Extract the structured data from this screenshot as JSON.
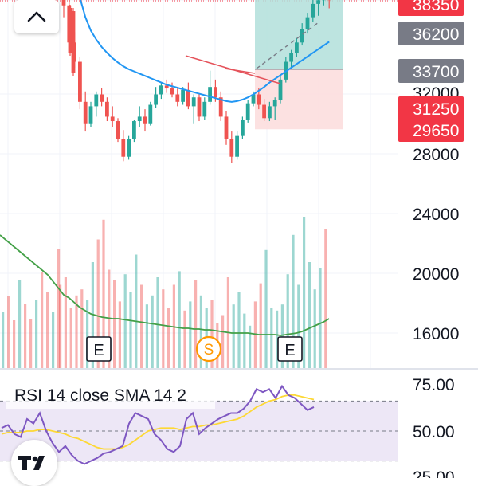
{
  "chart_data": {
    "type": "candlestick",
    "price_axis": {
      "ticks": [
        "28000",
        "24000",
        "20000",
        "16000"
      ],
      "tick_values": [
        28000,
        24000,
        20000,
        16000
      ],
      "partial_tick": "32000"
    },
    "price_badges": [
      {
        "label": "38350",
        "value": 38350,
        "color": "#f23645"
      },
      {
        "label": "36200",
        "value": 36200,
        "color": "#787b86"
      },
      {
        "label": "33700",
        "value": 33700,
        "color": "#787b86"
      },
      {
        "label": "31250",
        "value": 31250,
        "color": "#f23645"
      },
      {
        "label": "29650",
        "value": 29650,
        "color": "#f23645"
      }
    ],
    "events": [
      {
        "label": "E",
        "kind": "earnings",
        "index": 13
      },
      {
        "label": "S",
        "kind": "split",
        "index": 31
      },
      {
        "label": "E",
        "kind": "earnings",
        "index": 45
      }
    ],
    "ohlc": [
      [
        39500,
        40000,
        37200,
        38000
      ],
      [
        38000,
        38500,
        35000,
        35500
      ],
      [
        35500,
        36200,
        33800,
        34200
      ],
      [
        34200,
        34500,
        31000,
        31500
      ],
      [
        31500,
        32200,
        29500,
        30000
      ],
      [
        30000,
        31500,
        29800,
        31200
      ],
      [
        31200,
        32200,
        30500,
        32000
      ],
      [
        32000,
        32400,
        31200,
        31500
      ],
      [
        31500,
        31800,
        30200,
        30500
      ],
      [
        30500,
        31200,
        29800,
        30200
      ],
      [
        30200,
        30400,
        28800,
        29000
      ],
      [
        29000,
        29600,
        27500,
        27800
      ],
      [
        27800,
        29200,
        27600,
        29000
      ],
      [
        29000,
        30300,
        28800,
        30200
      ],
      [
        30200,
        31200,
        29800,
        30500
      ],
      [
        30500,
        31000,
        29500,
        30000
      ],
      [
        30000,
        31500,
        29900,
        31300
      ],
      [
        31300,
        32500,
        31100,
        32000
      ],
      [
        32000,
        32800,
        31700,
        32600
      ],
      [
        32600,
        33000,
        32100,
        32400
      ],
      [
        32400,
        32800,
        31800,
        32000
      ],
      [
        32000,
        32400,
        31200,
        31500
      ],
      [
        31500,
        32500,
        31300,
        32300
      ],
      [
        32300,
        32800,
        31000,
        31200
      ],
      [
        31200,
        32000,
        30000,
        31800
      ],
      [
        31800,
        32000,
        30200,
        30500
      ],
      [
        30500,
        31800,
        30300,
        31500
      ],
      [
        31500,
        33600,
        31300,
        32500
      ],
      [
        32500,
        33000,
        31500,
        31800
      ],
      [
        31800,
        32200,
        30200,
        30500
      ],
      [
        30500,
        30900,
        28600,
        29000
      ],
      [
        29000,
        29500,
        27400,
        27800
      ],
      [
        27800,
        29500,
        27600,
        29200
      ],
      [
        29200,
        30500,
        29000,
        30300
      ],
      [
        30300,
        31600,
        30100,
        31400
      ],
      [
        31400,
        32200,
        31200,
        32000
      ],
      [
        32000,
        32400,
        31000,
        31300
      ],
      [
        31300,
        31700,
        30200,
        30400
      ],
      [
        30400,
        31500,
        30200,
        31200
      ],
      [
        31200,
        31800,
        30300,
        31600
      ],
      [
        31600,
        33300,
        31400,
        33000
      ],
      [
        33000,
        34500,
        32800,
        34200
      ],
      [
        34200,
        35000,
        33700,
        34800
      ],
      [
        34800,
        35800,
        34500,
        35500
      ],
      [
        35500,
        36800,
        35300,
        36400
      ],
      [
        36400,
        37500,
        36100,
        37200
      ],
      [
        37200,
        38500,
        36900,
        38100
      ],
      [
        38100,
        38600,
        37300,
        38350
      ],
      [
        38350,
        39500,
        38000,
        38900
      ],
      [
        38900,
        39000,
        37800,
        38350
      ]
    ],
    "moving_average": {
      "color": "#2196f3",
      "values": [
        44000,
        42000,
        40000,
        38500,
        37200,
        36300,
        35700,
        35200,
        34800,
        34450,
        34150,
        33900,
        33700,
        33550,
        33400,
        33250,
        33100,
        32950,
        32800,
        32650,
        32550,
        32450,
        32350,
        32250,
        32150,
        32050,
        31950,
        31850,
        31750,
        31650,
        31550,
        31500,
        31550,
        31650,
        31800,
        32000,
        32250,
        32500,
        32800,
        33050,
        33300,
        33550,
        33800,
        34050,
        34300,
        34550,
        34800,
        35050,
        35300,
        35550
      ]
    },
    "drawings": {
      "trendline": {
        "color": "#e5535b",
        "points": [
          [
            20,
            34300
          ],
          [
            44,
            32800
          ]
        ]
      },
      "dashed_projection": {
        "color": "#787b86",
        "points": [
          [
            40,
            33700
          ],
          [
            48,
            37200
          ]
        ]
      },
      "long_position": {
        "from_index": 40,
        "to_index": 50,
        "entry": 33700,
        "target": 39600,
        "stop": 29650,
        "target_color": "#b2dfdb",
        "stop_color": "#fcdede"
      }
    },
    "volume": {
      "values": [
        55,
        60,
        40,
        48,
        52,
        45,
        70,
        85,
        98,
        65,
        58,
        44,
        62,
        50,
        75,
        55,
        42,
        48,
        60,
        52,
        40,
        55,
        64,
        38,
        44,
        58,
        48,
        40,
        45,
        30,
        35,
        60,
        42,
        50,
        36,
        28,
        44,
        56,
        78,
        40,
        38,
        42,
        62,
        88,
        55,
        100,
        70,
        52,
        66,
        92
      ],
      "up_color": "#26a69a",
      "down_color": "#ef5350",
      "ma_values": [
        92,
        88,
        82,
        76,
        72,
        68,
        66,
        64,
        63,
        62,
        62,
        61,
        60,
        59,
        58,
        57,
        56,
        55,
        54,
        53,
        52,
        51,
        50,
        50,
        49,
        49,
        48,
        48,
        47,
        46,
        45,
        44,
        44,
        44,
        44,
        43,
        42,
        42,
        42,
        42,
        41,
        42,
        43,
        44,
        46,
        49,
        52,
        55,
        58,
        62
      ],
      "ma_color": "#43a047"
    }
  },
  "rsi": {
    "title": "RSI 14 close SMA 14 2",
    "axis": {
      "ticks": [
        "75.00",
        "50.00",
        "25.00"
      ],
      "tick_values": [
        75,
        50,
        25
      ]
    },
    "band": {
      "upper": 70,
      "lower": 30,
      "color": "#ede7f6"
    },
    "rsi_color": "#7e57c2",
    "sma_color": "#fdd835",
    "rsi_values": [
      52,
      54,
      48,
      46,
      58,
      55,
      62,
      50,
      42,
      36,
      40,
      34,
      30,
      28,
      30,
      32,
      35,
      36,
      38,
      40,
      55,
      62,
      60,
      58,
      48,
      44,
      38,
      36,
      40,
      58,
      62,
      48,
      52,
      55,
      58,
      60,
      62,
      62,
      65,
      70,
      78,
      76,
      78,
      72,
      80,
      74,
      72,
      68,
      64,
      66
    ],
    "sma_values": [
      48,
      49,
      49,
      49,
      50,
      50,
      51,
      51,
      50,
      49,
      48,
      46,
      45,
      43,
      41,
      39,
      38,
      38,
      38,
      39,
      41,
      44,
      47,
      50,
      51,
      52,
      52,
      52,
      51,
      52,
      53,
      53,
      54,
      54,
      55,
      56,
      57,
      58,
      60,
      63,
      66,
      68,
      70,
      71,
      73,
      74,
      74,
      73,
      72,
      71
    ]
  },
  "ui": {
    "collapse_icon": "chevron-up-icon",
    "logo_text": "TV"
  }
}
